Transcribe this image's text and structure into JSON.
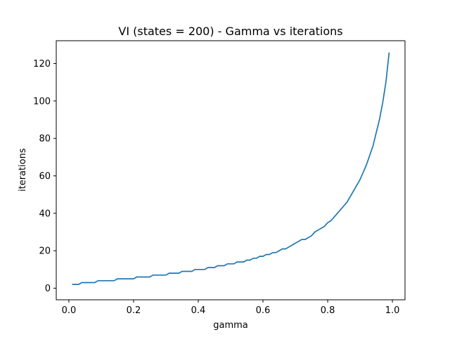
{
  "chart_data": {
    "type": "line",
    "title": "VI (states = 200) - Gamma vs iterations",
    "xlabel": "gamma",
    "ylabel": "iterations",
    "xlim": [
      -0.039,
      1.039
    ],
    "ylim": [
      -6.2,
      132.2
    ],
    "xticks": [
      "0.0",
      "0.2",
      "0.4",
      "0.6",
      "0.8",
      "1.0"
    ],
    "yticks": [
      "0",
      "20",
      "40",
      "60",
      "80",
      "100",
      "120"
    ],
    "grid": false,
    "legend": "none",
    "line_color": "#1f77b4",
    "series": [
      {
        "x": [
          0.01,
          0.02,
          0.03,
          0.04,
          0.05,
          0.06,
          0.07,
          0.08,
          0.09,
          0.1,
          0.11,
          0.12,
          0.13,
          0.14,
          0.15,
          0.16,
          0.17,
          0.18,
          0.19,
          0.2,
          0.21,
          0.22,
          0.23,
          0.24,
          0.25,
          0.26,
          0.27,
          0.28,
          0.29,
          0.3,
          0.31,
          0.32,
          0.33,
          0.34,
          0.35,
          0.36,
          0.37,
          0.38,
          0.39,
          0.4,
          0.41,
          0.42,
          0.43,
          0.44,
          0.45,
          0.46,
          0.47,
          0.48,
          0.49,
          0.5,
          0.51,
          0.52,
          0.53,
          0.54,
          0.55,
          0.56,
          0.57,
          0.58,
          0.59,
          0.6,
          0.61,
          0.62,
          0.63,
          0.64,
          0.65,
          0.66,
          0.67,
          0.68,
          0.69,
          0.7,
          0.71,
          0.72,
          0.73,
          0.74,
          0.75,
          0.76,
          0.77,
          0.78,
          0.79,
          0.8,
          0.81,
          0.82,
          0.83,
          0.84,
          0.85,
          0.86,
          0.87,
          0.88,
          0.89,
          0.9,
          0.91,
          0.92,
          0.93,
          0.94,
          0.95,
          0.96,
          0.97,
          0.98,
          0.99
        ],
        "values": [
          2,
          2,
          2,
          3,
          3,
          3,
          3,
          3,
          4,
          4,
          4,
          4,
          4,
          4,
          5,
          5,
          5,
          5,
          5,
          5,
          6,
          6,
          6,
          6,
          6,
          7,
          7,
          7,
          7,
          7,
          8,
          8,
          8,
          8,
          9,
          9,
          9,
          9,
          10,
          10,
          10,
          10,
          11,
          11,
          11,
          12,
          12,
          12,
          13,
          13,
          13,
          14,
          14,
          14,
          15,
          15,
          16,
          16,
          17,
          17,
          18,
          18,
          19,
          19,
          20,
          21,
          21,
          22,
          23,
          24,
          25,
          26,
          26,
          27,
          28,
          30,
          31,
          32,
          33,
          35,
          36,
          38,
          40,
          42,
          44,
          46,
          49,
          52,
          55,
          58,
          62,
          66,
          71,
          76,
          83,
          90,
          99,
          110,
          126
        ]
      }
    ]
  }
}
